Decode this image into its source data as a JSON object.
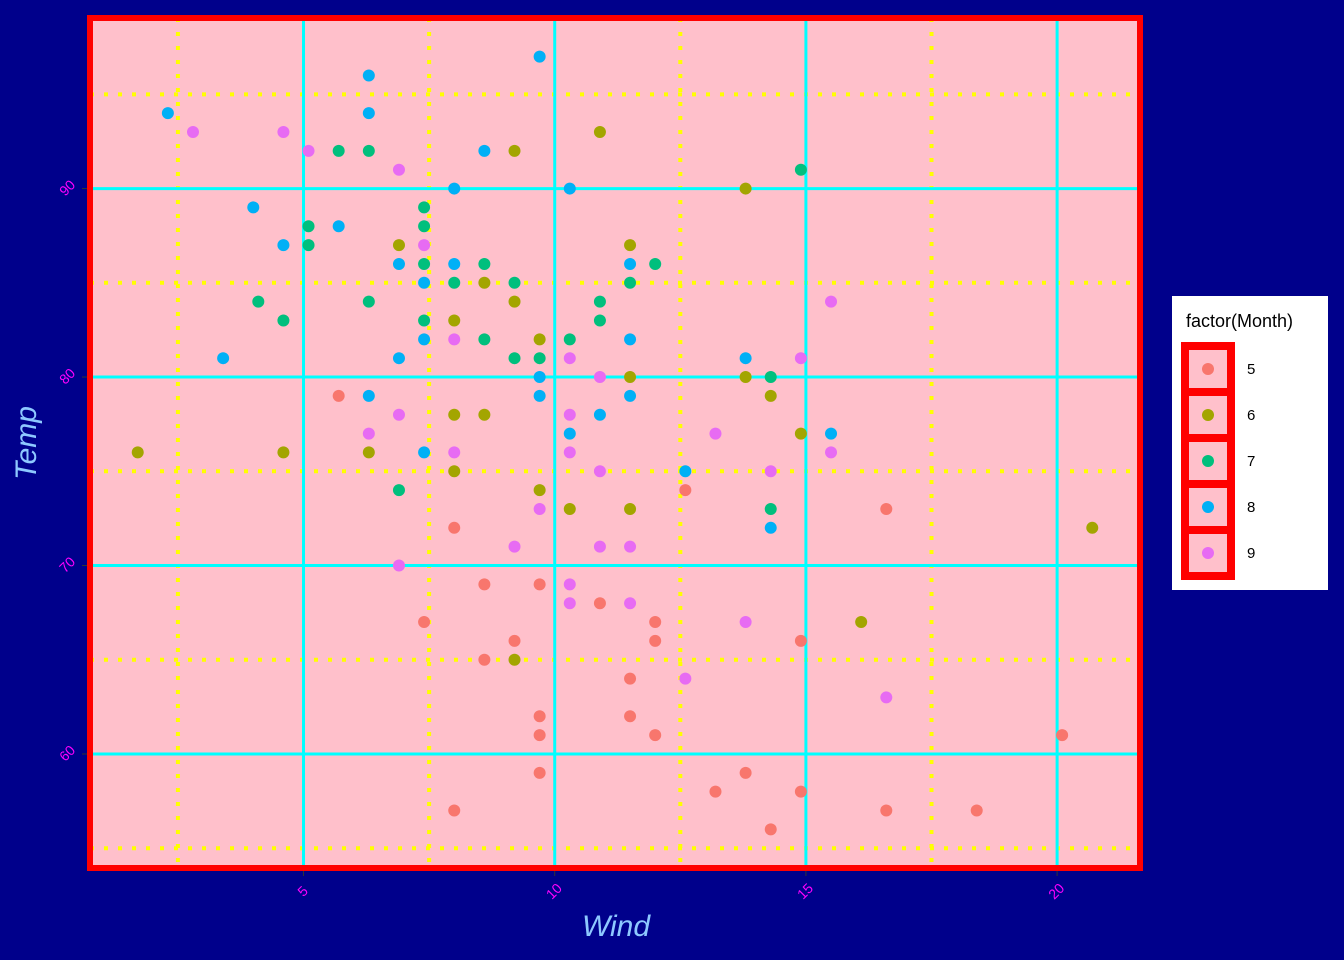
{
  "chart_data": {
    "type": "scatter",
    "x_label": "Wind",
    "y_label": "Temp",
    "legend_title": "factor(Month)",
    "legend_position": "right",
    "xlim": [
      0.75,
      21.65
    ],
    "ylim": [
      53.95,
      99.05
    ],
    "xticks": [
      5,
      10,
      15,
      20
    ],
    "yticks": [
      60,
      70,
      80,
      90
    ],
    "xminor": [
      2.5,
      7.5,
      12.5,
      17.5
    ],
    "yminor": [
      55,
      65,
      75,
      85,
      95
    ],
    "grid": true,
    "series": [
      {
        "name": "5",
        "color": "#F8766D",
        "x": [
          5.7,
          7.4,
          8.0,
          8.0,
          8.6,
          8.6,
          9.2,
          9.7,
          9.7,
          9.7,
          9.7,
          10.9,
          11.5,
          11.5,
          12.0,
          12.0,
          12.0,
          12.6,
          13.2,
          13.8,
          14.3,
          14.9,
          14.9,
          16.6,
          16.6,
          18.4,
          20.1
        ],
        "values": [
          79,
          67,
          72,
          57,
          69,
          65,
          66,
          69,
          62,
          61,
          59,
          68,
          64,
          62,
          67,
          66,
          61,
          74,
          58,
          59,
          56,
          66,
          58,
          73,
          57,
          57,
          61
        ]
      },
      {
        "name": "6",
        "color": "#A3A500",
        "x": [
          1.7,
          4.6,
          6.3,
          6.9,
          8.0,
          8.0,
          8.0,
          8.6,
          8.6,
          9.2,
          9.2,
          9.2,
          9.7,
          9.7,
          10.3,
          10.9,
          11.5,
          11.5,
          11.5,
          13.8,
          13.8,
          14.3,
          14.9,
          16.1,
          20.7
        ],
        "values": [
          76,
          76,
          76,
          87,
          83,
          78,
          75,
          85,
          78,
          92,
          84,
          65,
          82,
          74,
          73,
          93,
          87,
          80,
          73,
          90,
          80,
          79,
          77,
          67,
          72
        ]
      },
      {
        "name": "7",
        "color": "#00BF7D",
        "x": [
          4.1,
          4.6,
          5.1,
          5.1,
          5.7,
          6.3,
          6.3,
          6.9,
          7.4,
          7.4,
          7.4,
          7.4,
          8.0,
          8.6,
          8.6,
          9.2,
          9.2,
          9.7,
          10.3,
          10.9,
          10.9,
          11.5,
          12.0,
          14.3,
          14.3,
          14.9
        ],
        "values": [
          84,
          83,
          88,
          87,
          92,
          92,
          84,
          74,
          89,
          88,
          86,
          83,
          85,
          86,
          82,
          85,
          81,
          81,
          82,
          84,
          83,
          85,
          86,
          80,
          73,
          91
        ]
      },
      {
        "name": "8",
        "color": "#00B0F6",
        "x": [
          2.3,
          3.4,
          4.0,
          4.6,
          5.7,
          6.3,
          6.3,
          6.3,
          6.9,
          6.9,
          7.4,
          7.4,
          7.4,
          8.0,
          8.0,
          8.6,
          9.7,
          9.7,
          9.7,
          10.3,
          10.3,
          10.9,
          11.5,
          11.5,
          11.5,
          12.6,
          13.8,
          14.3,
          15.5
        ],
        "values": [
          94,
          81,
          89,
          87,
          88,
          96,
          94,
          79,
          86,
          81,
          85,
          82,
          76,
          90,
          86,
          92,
          97,
          80,
          79,
          90,
          77,
          78,
          86,
          82,
          79,
          75,
          81,
          72,
          77
        ]
      },
      {
        "name": "9",
        "color": "#E76BF3",
        "x": [
          2.8,
          4.6,
          5.1,
          6.3,
          6.9,
          6.9,
          6.9,
          7.4,
          8.0,
          8.0,
          9.2,
          9.7,
          10.3,
          10.3,
          10.3,
          10.3,
          10.3,
          10.9,
          10.9,
          10.9,
          11.5,
          11.5,
          12.6,
          13.2,
          13.8,
          14.3,
          14.9,
          15.5,
          15.5,
          16.6
        ],
        "values": [
          93,
          93,
          92,
          77,
          91,
          78,
          70,
          87,
          82,
          76,
          71,
          73,
          81,
          78,
          76,
          69,
          68,
          80,
          75,
          71,
          71,
          68,
          64,
          77,
          67,
          75,
          81,
          84,
          76,
          63
        ]
      }
    ]
  }
}
